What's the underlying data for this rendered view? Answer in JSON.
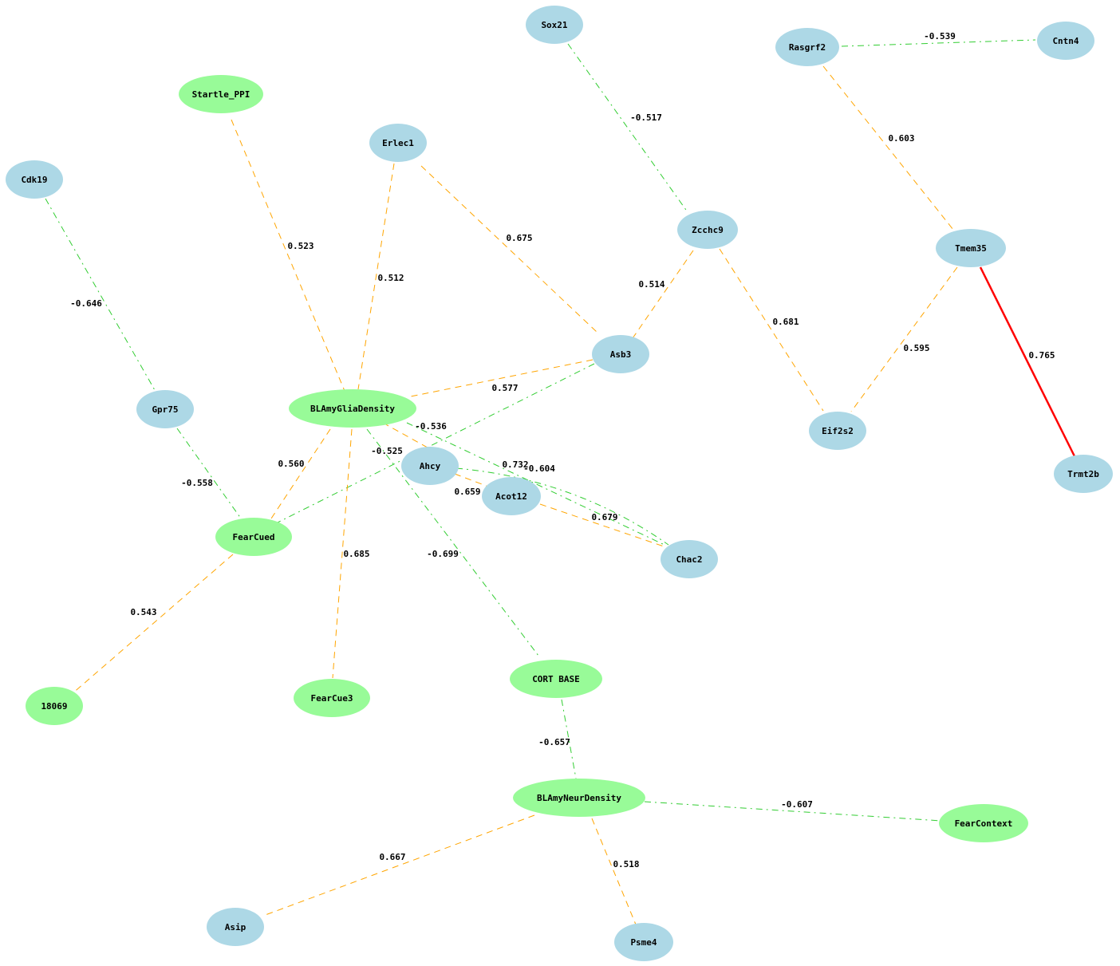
{
  "colors": {
    "gene_node": "#add8e6",
    "phenotype_node": "#98fb98",
    "positive_edge": "#ffa500",
    "negative_edge": "#32cd32",
    "strong_edge": "#ff0000"
  },
  "nodes": [
    {
      "id": "Sox21",
      "label": "Sox21",
      "kind": "gene"
    },
    {
      "id": "Rasgrf2",
      "label": "Rasgrf2",
      "kind": "gene"
    },
    {
      "id": "Cntn4",
      "label": "Cntn4",
      "kind": "gene"
    },
    {
      "id": "Startle_PPI",
      "label": "Startle_PPI",
      "kind": "phenotype"
    },
    {
      "id": "Erlec1",
      "label": "Erlec1",
      "kind": "gene"
    },
    {
      "id": "Cdk19",
      "label": "Cdk19",
      "kind": "gene"
    },
    {
      "id": "Zcchc9",
      "label": "Zcchc9",
      "kind": "gene"
    },
    {
      "id": "Tmem35",
      "label": "Tmem35",
      "kind": "gene"
    },
    {
      "id": "Asb3",
      "label": "Asb3",
      "kind": "gene"
    },
    {
      "id": "Gpr75",
      "label": "Gpr75",
      "kind": "gene"
    },
    {
      "id": "BLAmyGliaDensity",
      "label": "BLAmyGliaDensity",
      "kind": "phenotype"
    },
    {
      "id": "Eif2s2",
      "label": "Eif2s2",
      "kind": "gene"
    },
    {
      "id": "Ahcy",
      "label": "Ahcy",
      "kind": "gene"
    },
    {
      "id": "Trmt2b",
      "label": "Trmt2b",
      "kind": "gene"
    },
    {
      "id": "Acot12",
      "label": "Acot12",
      "kind": "gene"
    },
    {
      "id": "FearCued",
      "label": "FearCued",
      "kind": "phenotype"
    },
    {
      "id": "Chac2",
      "label": "Chac2",
      "kind": "gene"
    },
    {
      "id": "CORT_BASE",
      "label": "CORT BASE",
      "kind": "phenotype"
    },
    {
      "id": "18069",
      "label": "18069",
      "kind": "phenotype"
    },
    {
      "id": "FearCue3",
      "label": "FearCue3",
      "kind": "phenotype"
    },
    {
      "id": "BLAmyNeurDensity",
      "label": "BLAmyNeurDensity",
      "kind": "phenotype"
    },
    {
      "id": "FearContext",
      "label": "FearContext",
      "kind": "phenotype"
    },
    {
      "id": "Asip",
      "label": "Asip",
      "kind": "gene"
    },
    {
      "id": "Psme4",
      "label": "Psme4",
      "kind": "gene"
    }
  ],
  "edges": [
    {
      "source": "Rasgrf2",
      "target": "Cntn4",
      "weight": "-0.539"
    },
    {
      "source": "Sox21",
      "target": "Zcchc9",
      "weight": "-0.517"
    },
    {
      "source": "Rasgrf2",
      "target": "Tmem35",
      "weight": "0.603"
    },
    {
      "source": "Startle_PPI",
      "target": "BLAmyGliaDensity",
      "weight": "0.523"
    },
    {
      "source": "Erlec1",
      "target": "BLAmyGliaDensity",
      "weight": "0.512"
    },
    {
      "source": "Erlec1",
      "target": "Asb3",
      "weight": "0.675"
    },
    {
      "source": "Cdk19",
      "target": "Gpr75",
      "weight": "-0.646"
    },
    {
      "source": "Zcchc9",
      "target": "Asb3",
      "weight": "0.514"
    },
    {
      "source": "Zcchc9",
      "target": "Eif2s2",
      "weight": "0.681"
    },
    {
      "source": "Tmem35",
      "target": "Eif2s2",
      "weight": "0.595"
    },
    {
      "source": "Tmem35",
      "target": "Trmt2b",
      "weight": "0.765"
    },
    {
      "source": "Asb3",
      "target": "BLAmyGliaDensity",
      "weight": "0.577"
    },
    {
      "source": "Asb3",
      "target": "FearCued",
      "weight": "-0.525"
    },
    {
      "source": "BLAmyGliaDensity",
      "target": "Chac2",
      "weight": "-0.536"
    },
    {
      "source": "BLAmyGliaDensity",
      "target": "Ahcy",
      "weight": "0.732"
    },
    {
      "source": "Ahcy",
      "target": "Chac2",
      "weight": "-0.604"
    },
    {
      "source": "Ahcy",
      "target": "Acot12",
      "weight": "0.659"
    },
    {
      "source": "Acot12",
      "target": "Chac2",
      "weight": "0.679"
    },
    {
      "source": "Gpr75",
      "target": "FearCued",
      "weight": "-0.558"
    },
    {
      "source": "BLAmyGliaDensity",
      "target": "FearCued",
      "weight": "0.560"
    },
    {
      "source": "BLAmyGliaDensity",
      "target": "FearCue3",
      "weight": "0.685"
    },
    {
      "source": "BLAmyGliaDensity",
      "target": "CORT_BASE",
      "weight": "-0.699"
    },
    {
      "source": "FearCued",
      "target": "18069",
      "weight": "0.543"
    },
    {
      "source": "CORT_BASE",
      "target": "BLAmyNeurDensity",
      "weight": "-0.657"
    },
    {
      "source": "BLAmyNeurDensity",
      "target": "FearContext",
      "weight": "-0.607"
    },
    {
      "source": "BLAmyNeurDensity",
      "target": "Asip",
      "weight": "0.667"
    },
    {
      "source": "BLAmyNeurDensity",
      "target": "Psme4",
      "weight": "0.518"
    }
  ]
}
